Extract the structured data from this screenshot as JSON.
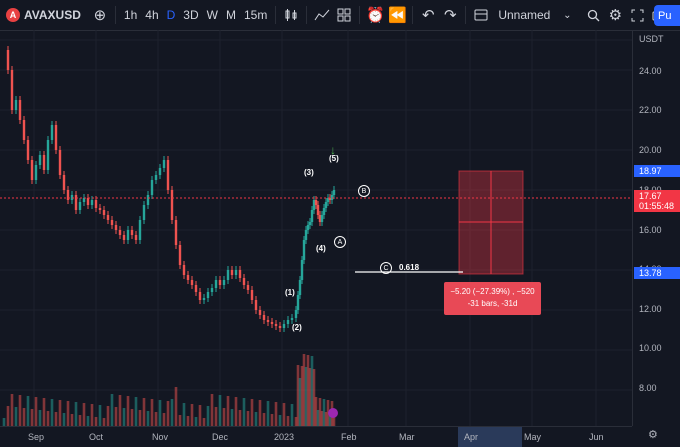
{
  "toolbar": {
    "logo_letter": "A",
    "symbol": "AVAXUSD",
    "add_icon": "plus-circle-icon",
    "intervals": [
      "1h",
      "4h",
      "D",
      "3D",
      "W",
      "M",
      "15m"
    ],
    "active_interval": "D",
    "layout_name": "Unnamed",
    "publish_label": "Pu"
  },
  "price_axis": {
    "currency": "USDT",
    "ticks": [
      "24.00",
      "22.00",
      "20.00",
      "18.00",
      "16.00",
      "14.00",
      "12.00",
      "10.00",
      "8.00"
    ],
    "tag_high": "18.97",
    "tag_last": "17.67",
    "tag_countdown": "01:55:48",
    "tag_low": "13.78",
    "colors": {
      "high": "#2962ff",
      "last": "#f23645",
      "low": "#2962ff"
    }
  },
  "time_axis": {
    "ticks": [
      "Sep",
      "Oct",
      "Nov",
      "Dec",
      "2023",
      "Feb",
      "Mar",
      "Apr",
      "May",
      "Jun"
    ]
  },
  "annotations": {
    "waves": [
      "(1)",
      "(2)",
      "(3)",
      "(4)",
      "(5)"
    ],
    "circles": [
      "B",
      "A",
      "C"
    ],
    "fib_level": "0.618",
    "measure_line1": "−5.20 (−27.39%) , −520",
    "measure_line2": "-31 bars, -31d"
  }
}
